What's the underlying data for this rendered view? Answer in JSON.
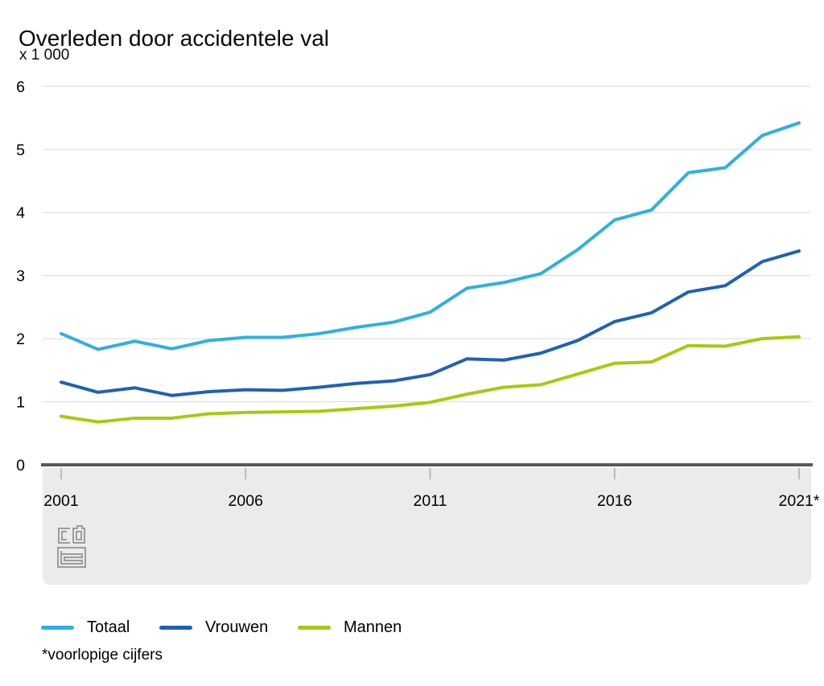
{
  "chart": {
    "title": "Overleden door accidentele val",
    "unit_label": "x 1 000",
    "footnote": "*voorlopige cijfers"
  },
  "legend": {
    "items": [
      {
        "label": "Totaal"
      },
      {
        "label": "Vrouwen"
      },
      {
        "label": "Mannen"
      }
    ]
  },
  "colors": {
    "totaal": "#2FB0E0",
    "vrouwen": "#1E62B4",
    "mannen": "#A9C90F",
    "gridline": "#DADADA",
    "axis": "#57585A",
    "band": "#EBEBEB",
    "tick": "#ABABAB",
    "logo": "#9C9C9C"
  },
  "chart_data": {
    "type": "line",
    "title": "Overleden door accidentele val",
    "unit_label": "x 1 000",
    "xlabel": "",
    "ylabel": "x 1 000",
    "ylim": [
      0,
      6
    ],
    "grid": true,
    "legend_position": "bottom",
    "footnote": "*voorlopige cijfers",
    "yticks": [
      0,
      1,
      2,
      3,
      4,
      5,
      6
    ],
    "xticks": [
      {
        "year": 2001,
        "label": "2001"
      },
      {
        "year": 2006,
        "label": "2006"
      },
      {
        "year": 2011,
        "label": "2011"
      },
      {
        "year": 2016,
        "label": "2016"
      },
      {
        "year": 2021,
        "label": "2021*"
      }
    ],
    "x": [
      2001,
      2002,
      2003,
      2004,
      2005,
      2006,
      2007,
      2008,
      2009,
      2010,
      2011,
      2012,
      2013,
      2014,
      2015,
      2016,
      2017,
      2018,
      2019,
      2020,
      2021
    ],
    "series": [
      {
        "name": "Totaal",
        "color": "#2FB0E0",
        "values": [
          2.08,
          1.83,
          1.96,
          1.84,
          1.97,
          2.02,
          2.02,
          2.08,
          2.18,
          2.26,
          2.42,
          2.8,
          2.89,
          3.03,
          3.41,
          3.88,
          4.04,
          4.63,
          4.71,
          5.22,
          5.42
        ]
      },
      {
        "name": "Vrouwen",
        "color": "#1E62B4",
        "values": [
          1.31,
          1.15,
          1.22,
          1.1,
          1.16,
          1.19,
          1.18,
          1.23,
          1.29,
          1.33,
          1.43,
          1.68,
          1.66,
          1.77,
          1.97,
          2.27,
          2.41,
          2.74,
          2.84,
          3.22,
          3.39
        ]
      },
      {
        "name": "Mannen",
        "color": "#A9C90F",
        "values": [
          0.77,
          0.68,
          0.74,
          0.74,
          0.81,
          0.83,
          0.84,
          0.85,
          0.89,
          0.93,
          0.99,
          1.12,
          1.23,
          1.27,
          1.44,
          1.61,
          1.63,
          1.89,
          1.88,
          2.0,
          2.03
        ]
      }
    ]
  }
}
